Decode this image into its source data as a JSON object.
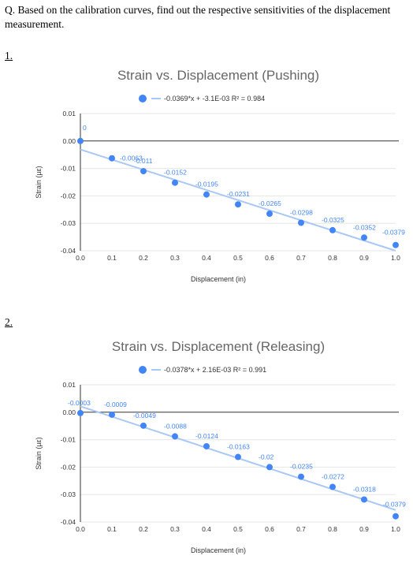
{
  "question": {
    "text": "Q. Based on the calibration curves, find out the respective sensitivities of the displacement measurement."
  },
  "charts": [
    {
      "number": "1."
    },
    {
      "number": "2."
    }
  ],
  "colors": {
    "point": "#4285f4",
    "trendline": "#a9c8f5",
    "zero_line": "#333333",
    "grid": "#e6e6e6",
    "text": "#333333",
    "title": "#666666"
  },
  "chart_data": [
    {
      "type": "scatter",
      "title": "Strain vs. Displacement (Pushing)",
      "xlabel": "Displacement (in)",
      "ylabel": "Strain (µε)",
      "xlim": [
        0,
        1.0
      ],
      "ylim": [
        -0.04,
        0.01
      ],
      "xticks": [
        "0.0",
        "0.1",
        "0.2",
        "0.3",
        "0.4",
        "0.5",
        "0.6",
        "0.7",
        "0.8",
        "0.9",
        "1.0"
      ],
      "yticks": [
        "0.01",
        "0.00",
        "-0.01",
        "-0.02",
        "-0.03",
        "-0.04"
      ],
      "grid": true,
      "legend": "top-center",
      "trendline_label": "-0.0369*x + -3.1E-03 R² = 0.984",
      "trendline": {
        "slope": -0.0369,
        "intercept": -0.0031
      },
      "x": [
        0,
        0.1,
        0.2,
        0.3,
        0.4,
        0.5,
        0.6,
        0.7,
        0.8,
        0.9,
        1.0
      ],
      "y": [
        0,
        -0.0063,
        -0.011,
        -0.0152,
        -0.0195,
        -0.0231,
        -0.0265,
        -0.0298,
        -0.0325,
        -0.0352,
        -0.0379
      ],
      "data_labels": [
        "0",
        "-0.0063",
        "-0.011",
        "-0.0152",
        "-0.0195",
        "-0.0231",
        "-0.0265",
        "-0.0298",
        "-0.0325",
        "-0.0352",
        "-0.0379"
      ]
    },
    {
      "type": "scatter",
      "title": "Strain vs. Displacement (Releasing)",
      "xlabel": "Displacement (in)",
      "ylabel": "Strain (µε)",
      "xlim": [
        0,
        1.0
      ],
      "ylim": [
        -0.04,
        0.01
      ],
      "xticks": [
        "0.0",
        "0.1",
        "0.2",
        "0.3",
        "0.4",
        "0.5",
        "0.6",
        "0.7",
        "0.8",
        "0.9",
        "1.0"
      ],
      "yticks": [
        "0.01",
        "0.00",
        "-0.01",
        "-0.02",
        "-0.03",
        "-0.04"
      ],
      "grid": true,
      "legend": "top-center",
      "trendline_label": "-0.0378*x + 2.16E-03 R² = 0.991",
      "trendline": {
        "slope": -0.0378,
        "intercept": 0.00216
      },
      "x": [
        0,
        0.1,
        0.2,
        0.3,
        0.4,
        0.5,
        0.6,
        0.7,
        0.8,
        0.9,
        1.0
      ],
      "y": [
        -0.0003,
        -0.0009,
        -0.0049,
        -0.0088,
        -0.0124,
        -0.0163,
        -0.02,
        -0.0235,
        -0.0272,
        -0.0318,
        -0.0379
      ],
      "data_labels": [
        "-0.0003",
        "-0.0009",
        "-0.0049",
        "-0.0088",
        "-0.0124",
        "-0.0163",
        "-0.02",
        "-0.0235",
        "-0.0272",
        "-0.0318",
        "-0.0379"
      ]
    }
  ]
}
